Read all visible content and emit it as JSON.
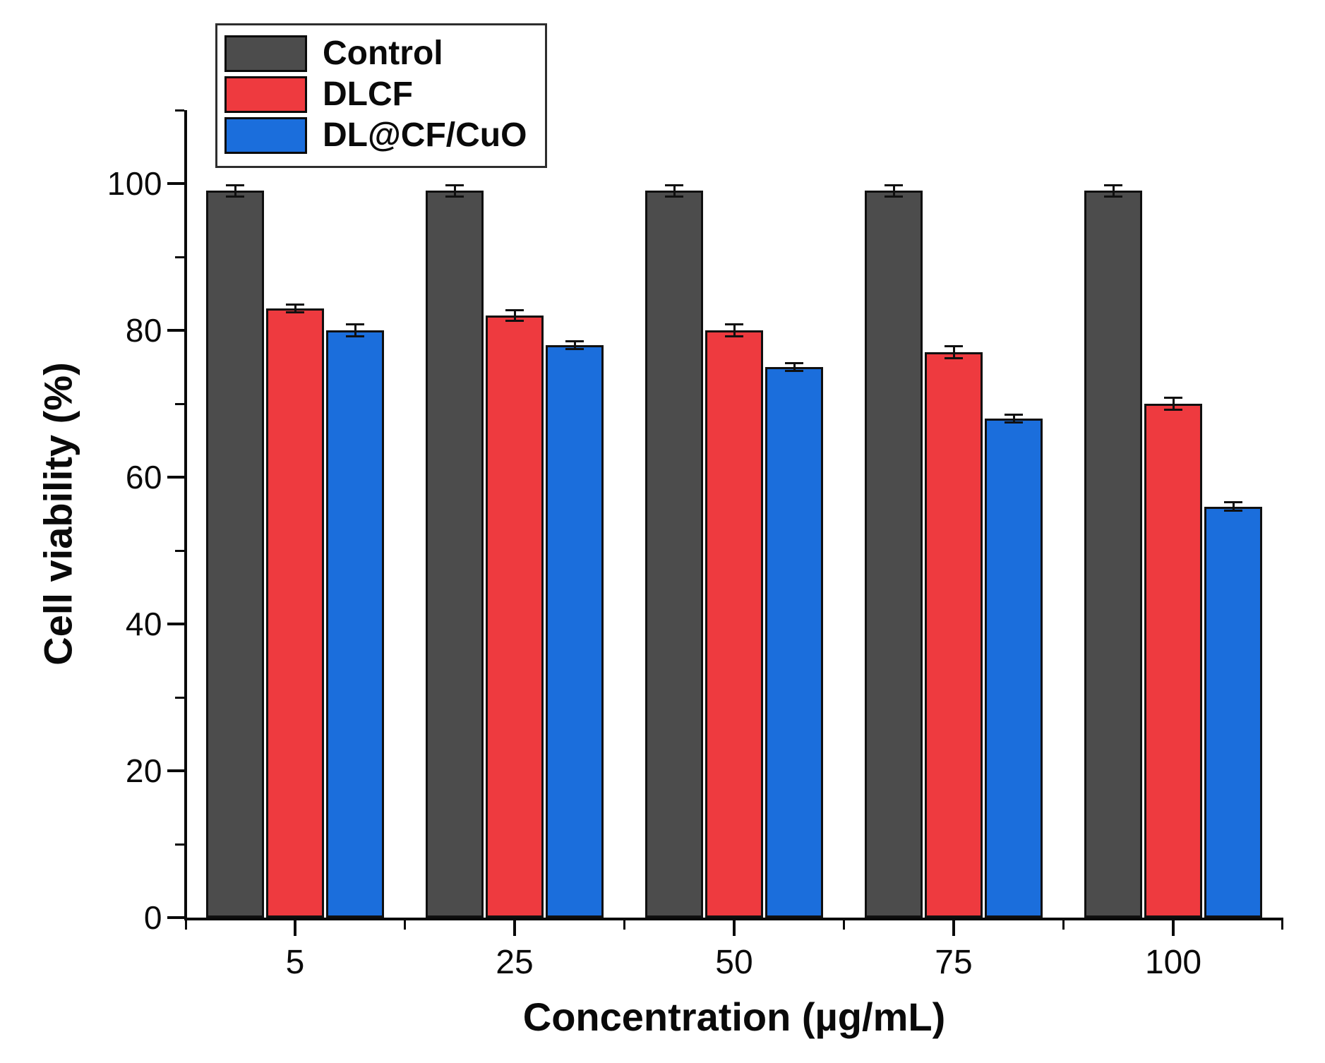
{
  "chart_data": {
    "type": "bar",
    "title": "",
    "xlabel": "Concentration (µg/mL)",
    "ylabel": "Cell viability (%)",
    "categories": [
      "5",
      "25",
      "50",
      "75",
      "100"
    ],
    "series": [
      {
        "name": "Control",
        "color": "#4C4C4C",
        "values": [
          99,
          99,
          99,
          99,
          99
        ],
        "errors": [
          0.8,
          0.8,
          0.8,
          0.8,
          0.8
        ]
      },
      {
        "name": "DLCF",
        "color": "#EE3A3F",
        "values": [
          83,
          82,
          80,
          77,
          70
        ],
        "errors": [
          0.5,
          0.7,
          0.8,
          0.8,
          0.8
        ]
      },
      {
        "name": "DL@CF/CuO",
        "color": "#1B6EDC",
        "values": [
          80,
          78,
          75,
          68,
          56
        ],
        "errors": [
          0.8,
          0.5,
          0.5,
          0.5,
          0.6
        ]
      }
    ],
    "ylim": [
      0,
      110
    ],
    "yticks": [
      0,
      20,
      40,
      60,
      80,
      100
    ],
    "yticks_minor": [
      10,
      30,
      50,
      70,
      90,
      110
    ],
    "grid": false,
    "error_bars": true,
    "legend_position": "top-left",
    "bar_edge_color": "#101010",
    "axis_color": "#0a0a0a"
  }
}
